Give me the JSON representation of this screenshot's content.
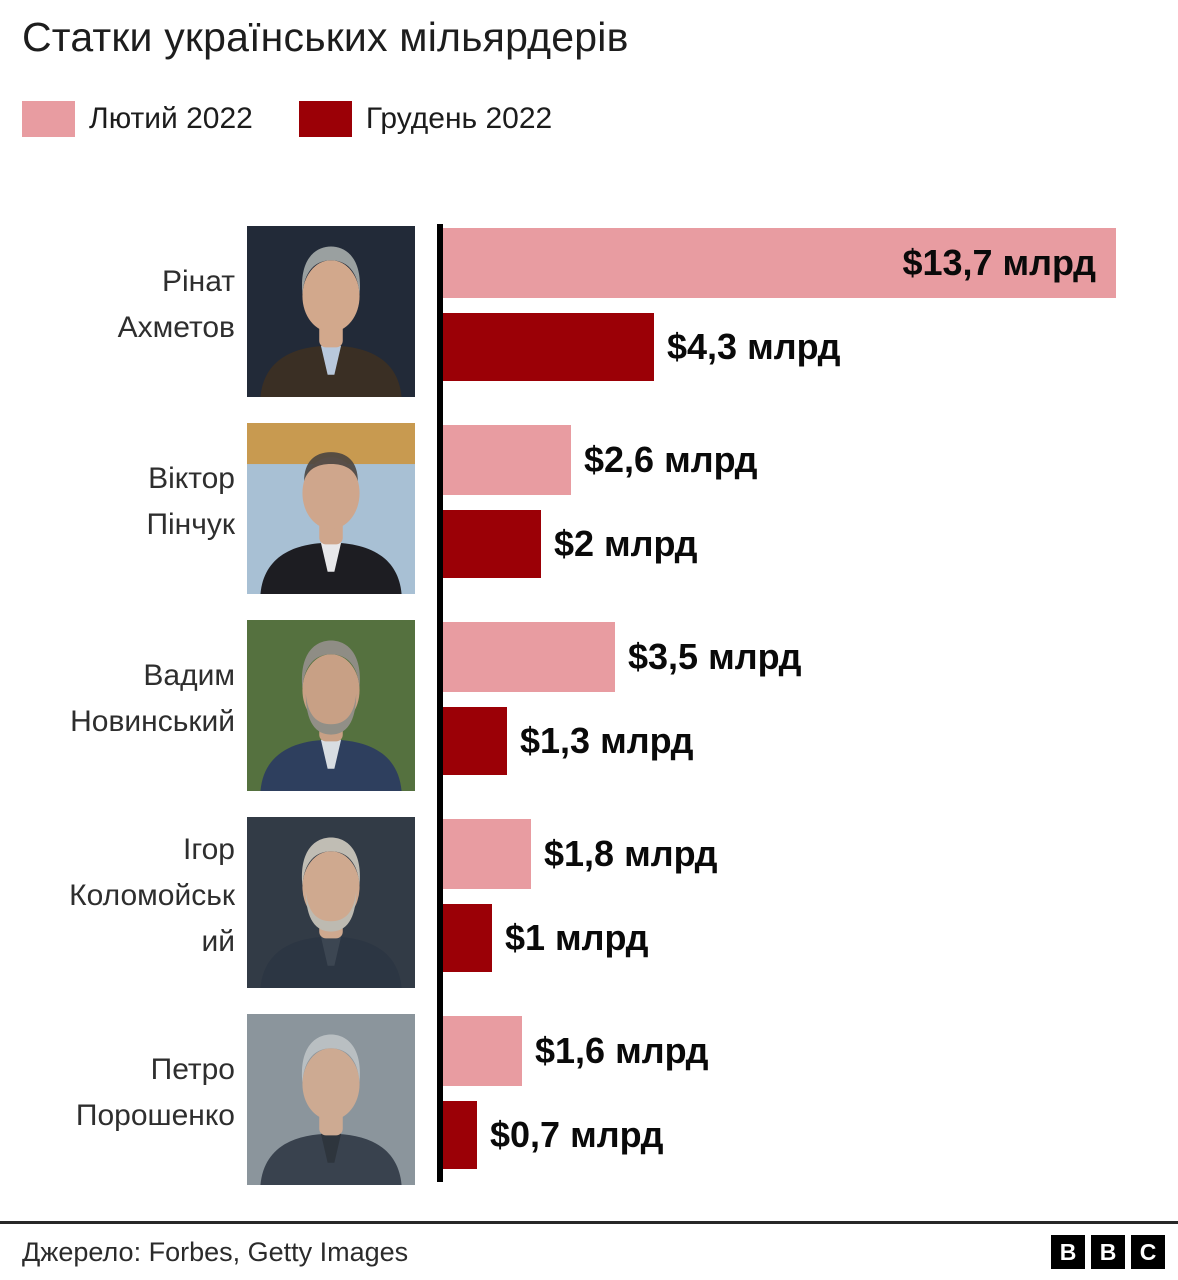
{
  "title": "Статки українських мільярдерів",
  "legend": [
    {
      "label": "Лютий 2022",
      "color": "#e89ca1"
    },
    {
      "label": "Грудень 2022",
      "color": "#9b0006"
    }
  ],
  "colors": {
    "feb": "#e89ca1",
    "dec": "#9b0006",
    "axis": "#000000"
  },
  "source": "Джерело: Forbes, Getty Images",
  "logo_letters": [
    "B",
    "B",
    "C"
  ],
  "chart_data": {
    "type": "bar",
    "orientation": "horizontal",
    "title": "Статки українських мільярдерів",
    "categories": [
      "Рінат Ахметов",
      "Віктор Пінчук",
      "Вадим Новинський",
      "Ігор Коломойський",
      "Петро Порошенко"
    ],
    "series": [
      {
        "name": "Лютий 2022",
        "color": "#e89ca1",
        "values": [
          13.7,
          2.6,
          3.5,
          1.8,
          1.6
        ],
        "labels": [
          "$13,7 млрд",
          "$2,6 млрд",
          "$3,5 млрд",
          "$1,8 млрд",
          "$1,6 млрд"
        ]
      },
      {
        "name": "Грудень 2022",
        "color": "#9b0006",
        "values": [
          4.3,
          2.0,
          1.3,
          1.0,
          0.7
        ],
        "labels": [
          "$4,3 млрд",
          "$2 млрд",
          "$1,3 млрд",
          "$1 млрд",
          "$0,7 млрд"
        ]
      }
    ],
    "unit": "$ млрд",
    "xlim": [
      0,
      13.7
    ],
    "grid": false,
    "legend_position": "top"
  },
  "rows": [
    {
      "name": "Рінат Ахметов",
      "name_lines": [
        "Рінат",
        "Ахметов"
      ],
      "feb": {
        "value": 13.7,
        "label": "$13,7 млрд"
      },
      "dec": {
        "value": 4.3,
        "label": "$4,3 млрд"
      },
      "photo": {
        "bg": "#222a38",
        "hair": "#9aa0a0",
        "skin": "#d2a88c",
        "coat": "#3a2f24",
        "shirt": "#b8c8dc"
      }
    },
    {
      "name": "Віктор Пінчук",
      "name_lines": [
        "Віктор",
        "Пінчук"
      ],
      "feb": {
        "value": 2.6,
        "label": "$2,6 млрд"
      },
      "dec": {
        "value": 2.0,
        "label": "$2 млрд"
      },
      "photo": {
        "bg": "#a8c0d4",
        "band": "#c89a50",
        "hair": "#4a4540",
        "bald": true,
        "skin": "#cfa68c",
        "coat": "#1d1d22",
        "shirt": "#e8e8ea"
      }
    },
    {
      "name": "Вадим Новинський",
      "name_lines": [
        "Вадим",
        "Новинський"
      ],
      "feb": {
        "value": 3.5,
        "label": "$3,5 млрд"
      },
      "dec": {
        "value": 1.3,
        "label": "$1,3 млрд"
      },
      "photo": {
        "bg": "#55713f",
        "hair": "#8f8d85",
        "beard": "#918f87",
        "skin": "#c8a085",
        "coat": "#2e3f5e",
        "shirt": "#d8dde2"
      }
    },
    {
      "name": "Ігор Коломойський",
      "name_lines": [
        "Ігор",
        "Коломойськ",
        "ий"
      ],
      "feb": {
        "value": 1.8,
        "label": "$1,8 млрд"
      },
      "dec": {
        "value": 1.0,
        "label": "$1 млрд"
      },
      "photo": {
        "bg": "#323b46",
        "hair": "#c0bdb4",
        "beard": "#bdbab1",
        "skin": "#cfa98f",
        "coat": "#2c3643",
        "shirt": "#3c4652"
      }
    },
    {
      "name": "Петро Порошенко",
      "name_lines": [
        "Петро",
        "Порошенко"
      ],
      "feb": {
        "value": 1.6,
        "label": "$1,6 млрд"
      },
      "dec": {
        "value": 0.7,
        "label": "$0,7 млрд"
      },
      "photo": {
        "bg": "#8b959c",
        "hair": "#b9bfc2",
        "skin": "#cdaa92",
        "coat": "#39424e",
        "shirt": "#2e353d"
      }
    }
  ]
}
